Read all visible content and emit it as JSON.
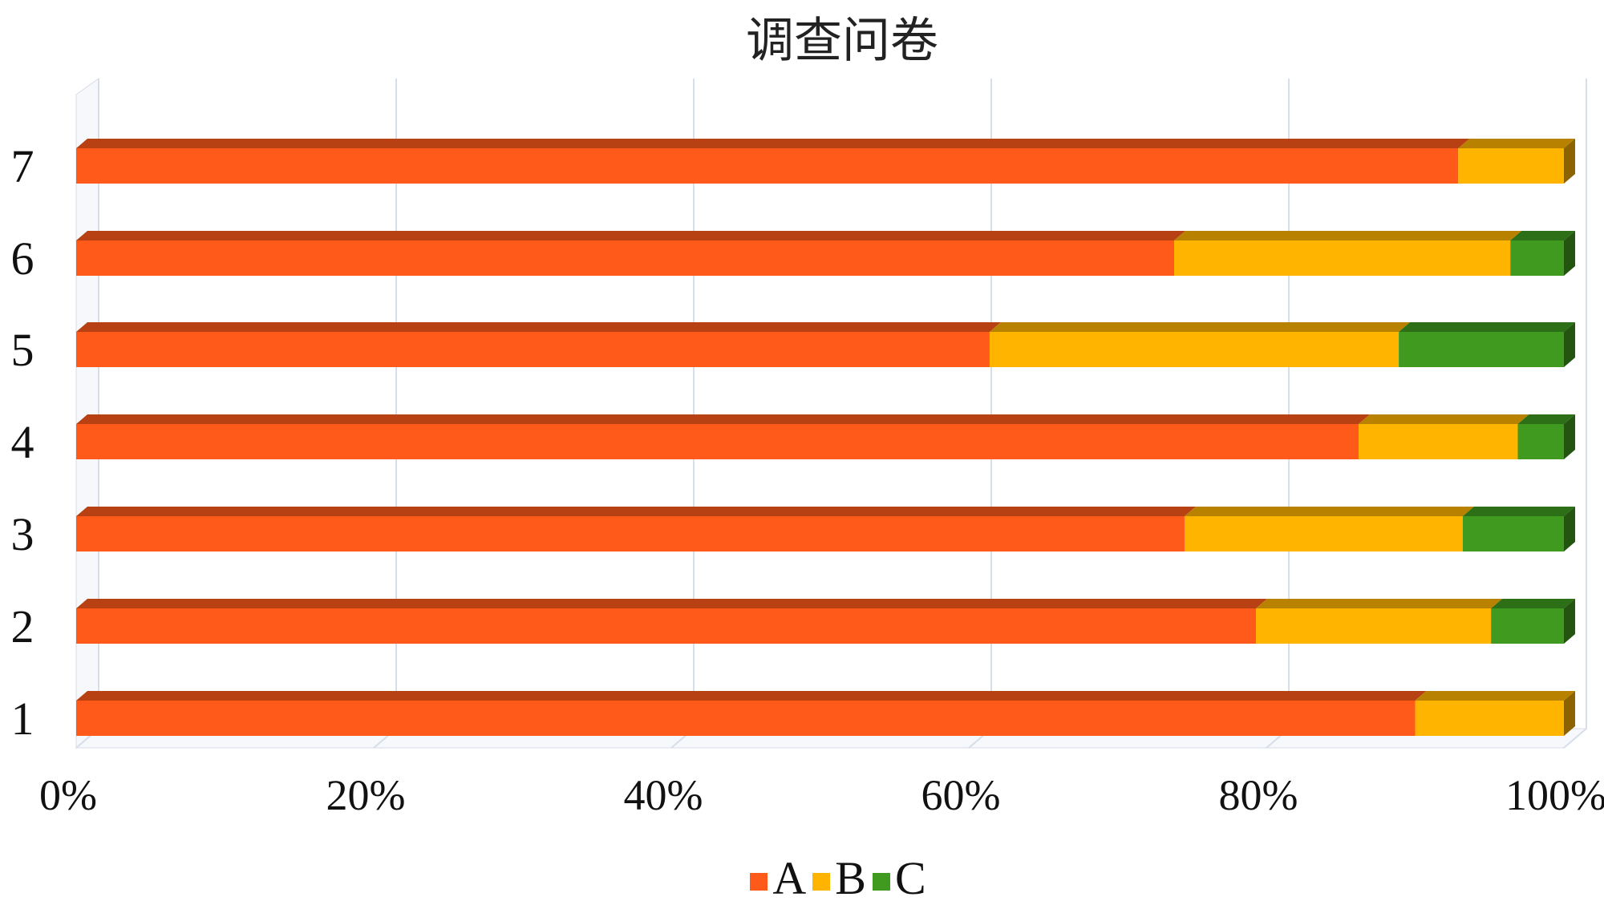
{
  "chart_data": {
    "type": "bar",
    "orientation": "horizontal",
    "stacked": "percent",
    "title": "调查问卷",
    "categories": [
      "1",
      "2",
      "3",
      "4",
      "5",
      "6",
      "7"
    ],
    "series": [
      {
        "name": "A",
        "color": "#FF5A1A",
        "values": [
          90.0,
          79.3,
          74.5,
          86.2,
          61.4,
          73.8,
          92.9
        ]
      },
      {
        "name": "B",
        "color": "#FFB400",
        "values": [
          10.0,
          15.8,
          18.7,
          10.7,
          27.5,
          22.6,
          7.1
        ]
      },
      {
        "name": "C",
        "color": "#3F9A1F",
        "values": [
          0.0,
          4.9,
          6.8,
          3.1,
          11.1,
          3.6,
          0.0
        ]
      }
    ],
    "xticks": [
      "0%",
      "20%",
      "40%",
      "60%",
      "80%",
      "100%"
    ],
    "xlim": [
      0,
      100
    ],
    "grid": true,
    "legend": "bottom"
  }
}
